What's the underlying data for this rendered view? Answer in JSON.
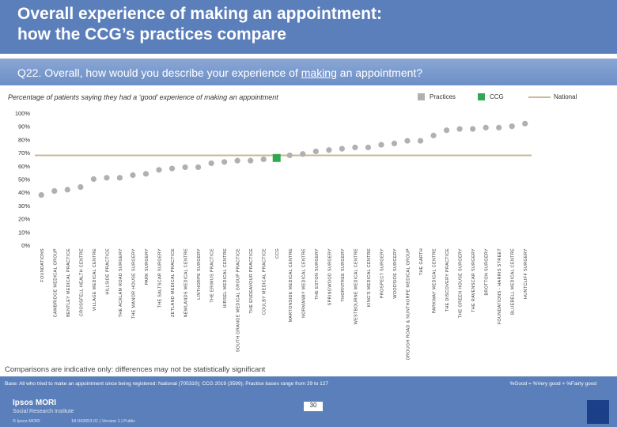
{
  "header": {
    "title_line1": "Overall experience of making an appointment:",
    "title_line2": "how the CCG’s practices compare"
  },
  "question": {
    "prefix": "Q22. Overall, how would you describe your experience of ",
    "underlined": "making",
    "suffix": " an appointment?"
  },
  "subtitle": "Percentage of patients saying they had a ‘good’ experience of making an appointment",
  "legend": {
    "practices": "Practices",
    "ccg": "CCG",
    "national": "National"
  },
  "colors": {
    "practice": "#b0b0b0",
    "ccg": "#2fa84f",
    "national": "#c8b89a"
  },
  "chart_data": {
    "type": "scatter",
    "title": "Percentage of patients saying they had a ‘good’ experience of making an appointment",
    "ylim": [
      0,
      100
    ],
    "yticks": [
      "0%",
      "10%",
      "20%",
      "30%",
      "40%",
      "50%",
      "60%",
      "70%",
      "80%",
      "90%",
      "100%"
    ],
    "national": 68,
    "highlight": "CCG",
    "categories": [
      "FOUNDATIONS",
      "CAMBRIDGE MEDICAL GROUP",
      "BENTLEY MEDICAL PRACTICE",
      "CROSSFELL HEALTH CENTRE",
      "VILLAGE MEDICAL CENTRE",
      "HILLSIDE PRACTICE",
      "THE ACKLAM ROAD SURGERY",
      "THE MANOR HOUSE SURGERY",
      "PARK SURGERY",
      "THE SALTSCAR SURGERY",
      "ZETLAND MEDICAL PRACTICE",
      "NEWLANDS MEDICAL CENTRE",
      "LINTHORPE SURGERY",
      "THE ERIMUS PRACTICE",
      "HIRSEL MEDICAL CENTRE",
      "SOUTH GRANGE MEDICAL GROUP PRACTICE",
      "THE ENDEAVOUR PRACTICE",
      "COULBY MEDICAL PRACTICE",
      "CCG",
      "MARTONSIDE MEDICAL CENTRE",
      "NORMANBY MEDICAL CENTRE",
      "THE ESTON SURGERY",
      "SPRINGWOOD SURGERY",
      "THORNTREE SURGERY",
      "WESTBOURNE MEDICAL CENTRE",
      "KING'S MEDICAL CENTRE",
      "PROSPECT SURGERY",
      "WOODSIDE SURGERY",
      "BOROUGH ROAD & NUNTHORPE MEDICAL GROUP",
      "THE GARTH",
      "PARKWAY MEDICAL CENTRE",
      "THE DISCOVERY PRACTICE",
      "THE GREEN HOUSE SURGERY",
      "THE RAVENSCAR SURGERY",
      "BROTTON SURGERY",
      "FOUNDATIONS - HARRIS STREET",
      "BLUEBELL MEDICAL CENTRE",
      "HUNTCLIFF SURGERY"
    ],
    "values": [
      38,
      41,
      42,
      44,
      50,
      51,
      51,
      53,
      54,
      57,
      58,
      59,
      59,
      62,
      63,
      64,
      64,
      65,
      66,
      68,
      69,
      71,
      72,
      73,
      74,
      74,
      76,
      77,
      79,
      79,
      83,
      87,
      88,
      88,
      89,
      89,
      90,
      92
    ]
  },
  "note": "Comparisons are indicative only: differences may not be statistically significant",
  "footer": {
    "base": "Base: All who tried to make an appointment since being registered: National (705310); CCG 2019 (3599); Practice bases range from 29 to 127",
    "key": "%Good = %Very good + %Fairly good",
    "page": "30",
    "brand": "Ipsos MORI",
    "brand_sub": "Social Research Institute",
    "copyright": "© Ipsos MORI",
    "reference": "18-042653-01 | Version 1 | Public"
  }
}
